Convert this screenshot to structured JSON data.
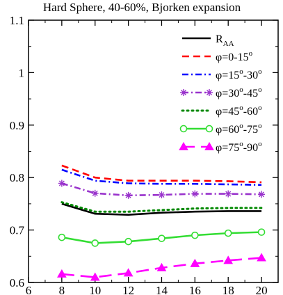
{
  "chart_data": {
    "type": "line",
    "title": "Hard Sphere, 40-60%, Bjorken expansion",
    "xlabel": "",
    "ylabel": "",
    "xlim": [
      6,
      21
    ],
    "ylim": [
      0.6,
      1.1
    ],
    "xticks": [
      "6",
      "8",
      "10",
      "12",
      "14",
      "16",
      "18",
      "20"
    ],
    "yticks": [
      "0.6",
      "0.7",
      "0.8",
      "0.9",
      "1",
      "1.1"
    ],
    "grid": false,
    "legend_position": "top-right",
    "x": [
      8,
      10,
      12,
      14,
      16,
      18,
      20
    ],
    "series": [
      {
        "name": "R_AA",
        "legend_main": "R",
        "legend_sub": "AA",
        "color": "#000000",
        "dash": "solid",
        "marker": "none",
        "values": [
          0.75,
          0.731,
          0.729,
          0.733,
          0.735,
          0.736,
          0.736
        ]
      },
      {
        "name": "φ=0-15°",
        "legend_main": "φ=0-15",
        "legend_sup": "o",
        "color": "#ff0000",
        "dash": "dashed",
        "marker": "none",
        "values": [
          0.823,
          0.8,
          0.794,
          0.794,
          0.794,
          0.793,
          0.791
        ]
      },
      {
        "name": "φ=15°-30°",
        "legend_parts": [
          "φ=15",
          "o",
          "-30",
          "o"
        ],
        "color": "#0000ff",
        "dash": "dashdot",
        "marker": "none",
        "values": [
          0.815,
          0.794,
          0.789,
          0.788,
          0.788,
          0.787,
          0.786
        ]
      },
      {
        "name": "φ=30°-45°",
        "legend_parts": [
          "φ=30",
          "o",
          "-45",
          "o"
        ],
        "color": "#9933cc",
        "dash": "dashdot",
        "marker": "asterisk",
        "values": [
          0.789,
          0.77,
          0.766,
          0.767,
          0.769,
          0.769,
          0.768
        ]
      },
      {
        "name": "φ=45°-60°",
        "legend_parts": [
          "φ=45",
          "o",
          "-60",
          "o"
        ],
        "color": "#008800",
        "dash": "dotted",
        "marker": "none",
        "values": [
          0.753,
          0.735,
          0.735,
          0.738,
          0.741,
          0.742,
          0.742
        ]
      },
      {
        "name": "φ=60°-75°",
        "legend_parts": [
          "φ=60",
          "o",
          "-75",
          "o"
        ],
        "color": "#33dd33",
        "dash": "solid",
        "marker": "open-circle",
        "values": [
          0.686,
          0.675,
          0.678,
          0.684,
          0.69,
          0.694,
          0.696
        ]
      },
      {
        "name": "φ=75°-90°",
        "legend_parts": [
          "φ=75",
          "o",
          "-90",
          "o"
        ],
        "color": "#ff00ff",
        "dash": "longdash",
        "marker": "filled-triangle",
        "values": [
          0.616,
          0.61,
          0.618,
          0.628,
          0.636,
          0.642,
          0.647
        ]
      }
    ]
  }
}
